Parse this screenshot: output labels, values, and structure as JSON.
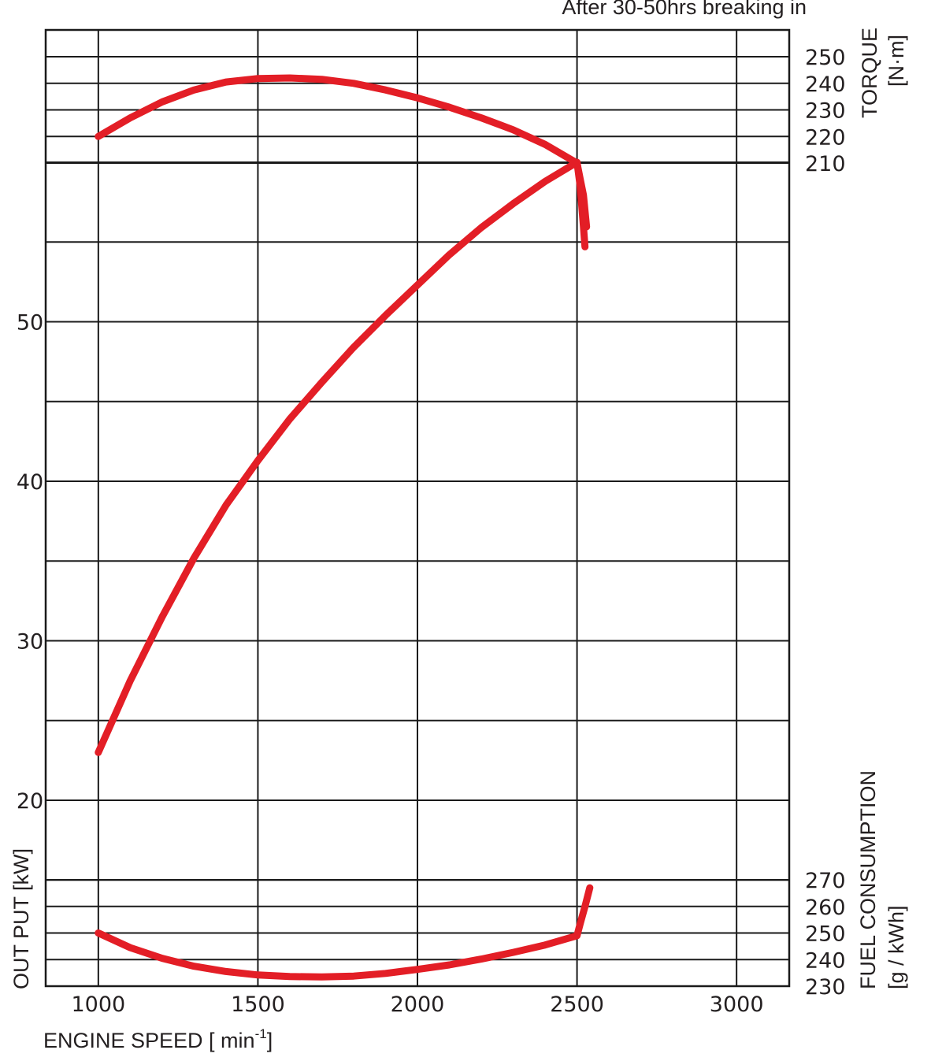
{
  "chart_data": {
    "type": "line",
    "annotation": "After 30-50hrs breaking in",
    "x_axis": {
      "label": "ENGINE SPEED [ min",
      "label_superscript": "-1",
      "label_close": "]",
      "range": [
        835,
        3165
      ],
      "ticks": [
        1000,
        1500,
        2000,
        2500,
        3000
      ],
      "tick_labels": [
        "1000",
        "1500",
        "2000",
        "2500",
        "3000"
      ]
    },
    "output_axis": {
      "label": "OUT PUT [kW]",
      "ticks": [
        20,
        30,
        40,
        50
      ],
      "tick_labels": [
        "20",
        "30",
        "40",
        "50"
      ]
    },
    "torque_axis": {
      "label_line1": "TORQUE",
      "label_line2": "[N·m]",
      "ticks": [
        210,
        220,
        230,
        240,
        250
      ],
      "tick_labels": [
        "210",
        "220",
        "230",
        "240",
        "250"
      ]
    },
    "fuel_axis": {
      "label_line1": "FUEL CONSUMPTION",
      "label_line2": "[g / kWh]",
      "ticks": [
        230,
        240,
        250,
        260,
        270
      ],
      "tick_labels": [
        "230",
        "240",
        "250",
        "260",
        "270"
      ]
    },
    "series": [
      {
        "axis": "torque",
        "color": "#e31e26",
        "points": [
          [
            1000,
            220
          ],
          [
            1100,
            227
          ],
          [
            1200,
            233
          ],
          [
            1300,
            237.5
          ],
          [
            1400,
            240.5
          ],
          [
            1500,
            241.8
          ],
          [
            1600,
            242
          ],
          [
            1700,
            241.5
          ],
          [
            1800,
            240
          ],
          [
            1900,
            237.5
          ],
          [
            2000,
            234.5
          ],
          [
            2100,
            231
          ],
          [
            2200,
            227
          ],
          [
            2300,
            222.5
          ],
          [
            2400,
            217
          ],
          [
            2500,
            210
          ],
          [
            2510,
            204
          ],
          [
            2520,
            198
          ],
          [
            2530,
            186
          ]
        ]
      },
      {
        "axis": "output",
        "color": "#e31e26",
        "points": [
          [
            1000,
            23
          ],
          [
            1100,
            27.5
          ],
          [
            1200,
            31.5
          ],
          [
            1300,
            35.2
          ],
          [
            1400,
            38.5
          ],
          [
            1500,
            41.3
          ],
          [
            1600,
            43.9
          ],
          [
            1700,
            46.2
          ],
          [
            1800,
            48.4
          ],
          [
            1900,
            50.4
          ],
          [
            2000,
            52.3
          ],
          [
            2100,
            54.2
          ],
          [
            2200,
            55.9
          ],
          [
            2300,
            57.4
          ],
          [
            2400,
            58.8
          ],
          [
            2500,
            60
          ],
          [
            2510,
            58.5
          ],
          [
            2520,
            56
          ],
          [
            2525,
            54.7
          ]
        ]
      },
      {
        "axis": "fuel",
        "color": "#e31e26",
        "points": [
          [
            1000,
            250
          ],
          [
            1100,
            244.5
          ],
          [
            1200,
            240.5
          ],
          [
            1300,
            237.5
          ],
          [
            1400,
            235.5
          ],
          [
            1500,
            234.2
          ],
          [
            1600,
            233.6
          ],
          [
            1700,
            233.5
          ],
          [
            1800,
            233.8
          ],
          [
            1900,
            234.8
          ],
          [
            2000,
            236.3
          ],
          [
            2100,
            238
          ],
          [
            2200,
            240.2
          ],
          [
            2300,
            242.7
          ],
          [
            2400,
            245.5
          ],
          [
            2500,
            249
          ],
          [
            2510,
            253.5
          ],
          [
            2525,
            260
          ],
          [
            2540,
            267
          ]
        ]
      }
    ]
  }
}
